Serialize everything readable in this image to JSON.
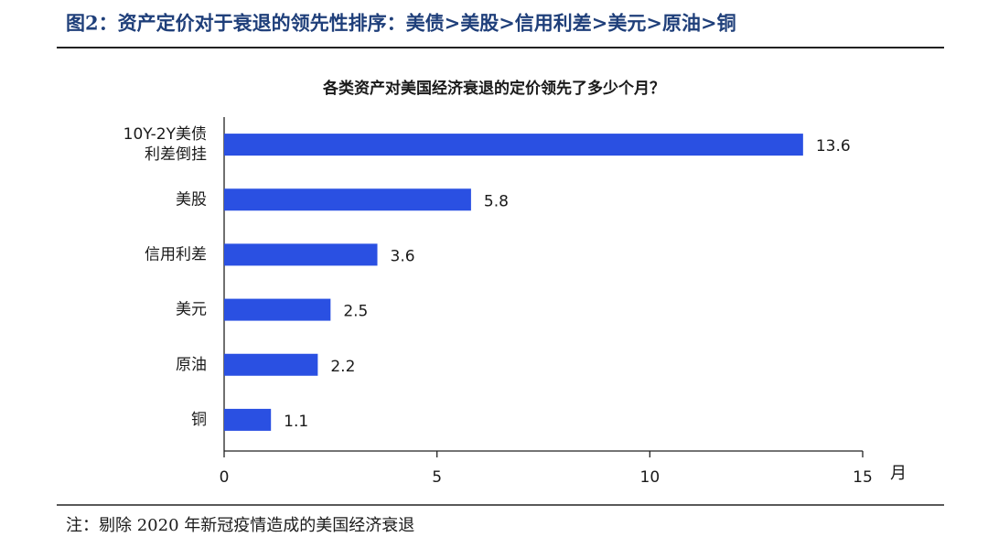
{
  "chart_data": {
    "type": "bar",
    "orientation": "horizontal",
    "figure_title": "图2：资产定价对于衰退的领先性排序：美债>美股>信用利差>美元>原油>铜",
    "title": "各类资产对美国经济衰退的定价领先了多少个月？",
    "categories": [
      [
        "10Y-2Y美债",
        "利差倒挂"
      ],
      "美股",
      "信用利差",
      "美元",
      "原油",
      "铜"
    ],
    "values": [
      13.6,
      5.8,
      3.6,
      2.5,
      2.2,
      1.1
    ],
    "color": "#2a50e2",
    "xlabel": "月",
    "xlim": [
      0,
      15
    ],
    "xticks": [
      0,
      5,
      10,
      15
    ],
    "grid": false,
    "note": "注：剔除 2020 年新冠疫情造成的美国经济衰退"
  }
}
